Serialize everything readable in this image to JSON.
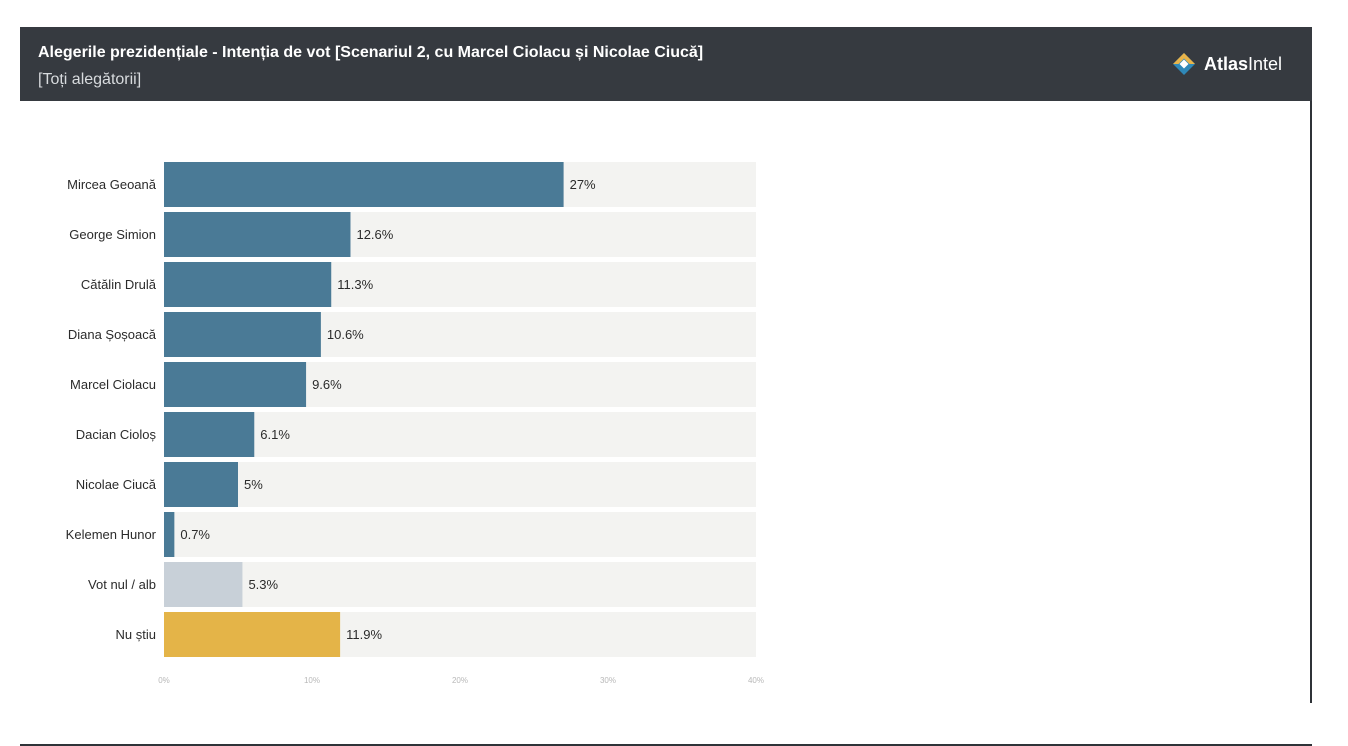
{
  "header": {
    "title": "Alegerile prezidențiale - Intenția de vot [Scenariul 2, cu Marcel Ciolacu și Nicolae Ciucă]",
    "subtitle": "[Toți alegătorii]",
    "brand_bold": "Atlas",
    "brand_regular": "Intel",
    "background": "#363a40"
  },
  "colors": {
    "candidate": "#4a7a96",
    "blank_vote": "#c8d0d8",
    "undecided": "#e4b448",
    "track": "#f3f3f1",
    "logo": [
      "#e8b44a",
      "#2f88b8",
      "#ffffff"
    ]
  },
  "chart_data": {
    "type": "bar",
    "orientation": "horizontal",
    "title": "Alegerile prezidențiale - Intenția de vot [Scenariul 2, cu Marcel Ciolacu și Nicolae Ciucă]",
    "subtitle": "[Toți alegătorii]",
    "categories": [
      "Mircea Geoană",
      "George Simion",
      "Cătălin Drulă",
      "Diana Șoșoacă",
      "Marcel Ciolacu",
      "Dacian Cioloș",
      "Nicolae Ciucă",
      "Kelemen Hunor",
      "Vot nul / alb",
      "Nu știu"
    ],
    "values": [
      27,
      12.6,
      11.3,
      10.6,
      9.6,
      6.1,
      5,
      0.7,
      5.3,
      11.9
    ],
    "value_labels": [
      "27%",
      "12.6%",
      "11.3%",
      "10.6%",
      "9.6%",
      "6.1%",
      "5%",
      "0.7%",
      "5.3%",
      "11.9%"
    ],
    "bar_colors": [
      "#4a7a96",
      "#4a7a96",
      "#4a7a96",
      "#4a7a96",
      "#4a7a96",
      "#4a7a96",
      "#4a7a96",
      "#4a7a96",
      "#c8d0d8",
      "#e4b448"
    ],
    "xlim": [
      0,
      40
    ],
    "xticks": [
      0,
      10,
      20,
      30,
      40
    ],
    "xtick_labels": [
      "0%",
      "10%",
      "20%",
      "30%",
      "40%"
    ],
    "grid": false,
    "legend": "none"
  }
}
